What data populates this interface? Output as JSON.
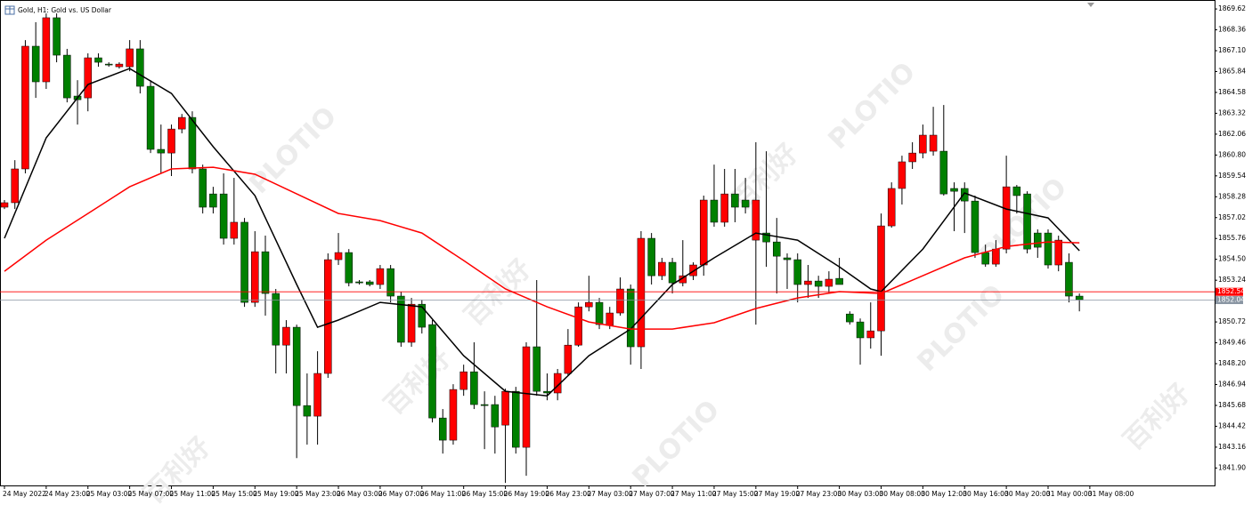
{
  "chart_data": {
    "type": "candlestick",
    "title": "Gold, H1:  Gold vs. US Dollar",
    "watermark": [
      "PLOTIO",
      "百利好"
    ],
    "up_color": "#ff0000",
    "down_color": "#008000",
    "ylim": [
      1840.9,
      1870.0
    ],
    "yticks": [
      1869.62,
      1868.36,
      {
        "value": 1867.1,
        "label": "1867.10"
      },
      1865.84,
      1864.58,
      1863.32,
      1862.06,
      {
        "value": 1860.8,
        "label": "1860.80"
      },
      1859.54,
      1858.28,
      1857.02,
      1855.76,
      {
        "value": 1854.5,
        "label": "1854.50"
      },
      1853.24,
      1850.72,
      1849.46,
      {
        "value": 1848.2,
        "label": "1848.20"
      },
      1846.94,
      1845.68,
      1844.42,
      1843.16,
      {
        "value": 1841.9,
        "label": "1841.90"
      }
    ],
    "xticks": [
      {
        "value": 0,
        "label": "24 May 2022"
      },
      {
        "value": 4,
        "label": "24 May 23:00"
      },
      {
        "value": 8,
        "label": "25 May 03:00"
      },
      {
        "value": 12,
        "label": "25 May 07:00"
      },
      {
        "value": 16,
        "label": "25 May 11:00"
      },
      {
        "value": 20,
        "label": "25 May 15:00"
      },
      {
        "value": 24,
        "label": "25 May 19:00"
      },
      {
        "value": 28,
        "label": "25 May 23:00"
      },
      {
        "value": 32,
        "label": "26 May 03:00"
      },
      {
        "value": 36,
        "label": "26 May 07:00"
      },
      {
        "value": 40,
        "label": "26 May 11:00"
      },
      {
        "value": 44,
        "label": "26 May 15:00"
      },
      {
        "value": 48,
        "label": "26 May 19:00"
      },
      {
        "value": 52,
        "label": "26 May 23:00"
      },
      {
        "value": 56,
        "label": "27 May 03:00"
      },
      {
        "value": 60,
        "label": "27 May 07:00"
      },
      {
        "value": 64,
        "label": "27 May 11:00"
      },
      {
        "value": 68,
        "label": "27 May 15:00"
      },
      {
        "value": 72,
        "label": "27 May 19:00"
      },
      {
        "value": 76,
        "label": "27 May 23:00"
      },
      {
        "value": 80,
        "label": "30 May 03:00"
      },
      {
        "value": 84,
        "label": "30 May 08:00"
      },
      {
        "value": 88,
        "label": "30 May 12:00"
      },
      {
        "value": 92,
        "label": "30 May 16:00"
      },
      {
        "value": 96,
        "label": "30 May 20:00"
      },
      {
        "value": 100,
        "label": "31 May 00:00"
      },
      {
        "value": 104,
        "label": "31 May 08:00"
      }
    ],
    "candles": {
      "open": [
        1857.65,
        1857.92,
        1859.96,
        1867.37,
        1865.22,
        1869.09,
        1866.83,
        1864.36,
        1864.25,
        1866.67,
        1866.29,
        1866.13,
        1866.13,
        1867.21,
        1864.95,
        1861.14,
        1860.92,
        1862.37,
        1863.07,
        1859.96,
        1858.45,
        1858.45,
        1855.77,
        1856.74,
        1851.9,
        1854.96,
        1852.44,
        1849.32,
        1850.4,
        1845.67,
        1845.03,
        1847.61,
        1854.48,
        1854.91,
        1853.14,
        1853.14,
        1852.98,
        1853.94,
        1852.28,
        1849.49,
        1851.79,
        1850.56,
        1844.92,
        1843.58,
        1846.64,
        1847.71,
        1845.73,
        1845.73,
        1844.49,
        1846.53,
        1843.15,
        1849.22,
        1846.53,
        1846.43,
        1847.61,
        1849.32,
        1851.63,
        1851.9,
        1850.51,
        1851.26,
        1852.71,
        1849.22,
        1855.77,
        1853.51,
        1854.32,
        1853.08,
        1853.51,
        1854.16,
        1858.08,
        1856.74,
        1858.45,
        1858.08,
        1855.66,
        1856.09,
        1855.55,
        1854.59,
        1854.48,
        1852.98,
        1853.19,
        1852.87,
        1853.35,
        1851.2,
        1850.72,
        1849.76,
        1850.18,
        1856.52,
        1858.78,
        1860.39,
        1860.92,
        1861.03,
        1861.03,
        1858.78,
        1858.78,
        1858.02,
        1854.91,
        1854.21,
        1855.12,
        1858.88,
        1858.45,
        1856.09,
        1856.09,
        1854.16,
        1854.32,
        1852.28
      ],
      "high": [
        1858.08,
        1860.49,
        1867.74,
        1868.82,
        1869.35,
        1869.35,
        1867.21,
        1865.32,
        1866.94,
        1866.94,
        1866.4,
        1866.4,
        1867.74,
        1867.74,
        1865.32,
        1862.64,
        1862.64,
        1863.28,
        1863.44,
        1860.22,
        1858.88,
        1859.69,
        1859.42,
        1857.0,
        1856.2,
        1855.93,
        1852.71,
        1850.83,
        1850.56,
        1847.61,
        1848.95,
        1854.86,
        1856.09,
        1855.12,
        1853.25,
        1853.25,
        1854.16,
        1854.16,
        1852.55,
        1852.17,
        1852.06,
        1850.83,
        1845.46,
        1846.96,
        1848.14,
        1849.49,
        1846.53,
        1846.26,
        1846.69,
        1846.8,
        1849.49,
        1853.25,
        1847.61,
        1847.88,
        1850.29,
        1851.9,
        1853.51,
        1852.17,
        1851.63,
        1853.41,
        1852.98,
        1856.2,
        1856.09,
        1854.59,
        1854.59,
        1855.66,
        1854.32,
        1858.35,
        1860.22,
        1859.96,
        1859.96,
        1859.42,
        1861.57,
        1861.03,
        1857.0,
        1854.86,
        1854.86,
        1854.16,
        1853.51,
        1853.78,
        1854.59,
        1851.36,
        1850.93,
        1851.9,
        1857.27,
        1859.15,
        1860.76,
        1861.57,
        1862.64,
        1863.71,
        1863.82,
        1859.15,
        1859.15,
        1858.35,
        1855.39,
        1855.66,
        1860.76,
        1858.99,
        1858.61,
        1856.31,
        1856.31,
        1855.93,
        1854.86,
        1852.44
      ],
      "low": [
        1857.54,
        1857.54,
        1859.69,
        1864.25,
        1864.79,
        1866.4,
        1863.98,
        1862.64,
        1863.44,
        1866.13,
        1866.13,
        1866.02,
        1865.86,
        1864.52,
        1860.92,
        1859.69,
        1859.53,
        1862.11,
        1859.69,
        1857.27,
        1857.27,
        1855.39,
        1855.39,
        1851.63,
        1851.63,
        1851.1,
        1847.61,
        1847.61,
        1842.5,
        1843.31,
        1843.31,
        1847.34,
        1854.16,
        1852.87,
        1852.98,
        1852.87,
        1852.71,
        1851.9,
        1849.22,
        1849.22,
        1850.02,
        1844.65,
        1842.77,
        1843.31,
        1846.26,
        1845.46,
        1843.04,
        1842.77,
        1841.0,
        1842.77,
        1841.43,
        1846.26,
        1845.99,
        1845.99,
        1847.5,
        1849.22,
        1851.36,
        1850.29,
        1850.29,
        1851.1,
        1848.14,
        1847.88,
        1852.98,
        1853.25,
        1852.44,
        1852.87,
        1853.25,
        1853.51,
        1856.47,
        1856.47,
        1856.74,
        1857.27,
        1850.56,
        1854.05,
        1852.44,
        1852.71,
        1851.9,
        1852.17,
        1852.17,
        1852.44,
        1852.98,
        1850.56,
        1848.14,
        1849.11,
        1848.68,
        1856.41,
        1857.81,
        1859.96,
        1860.6,
        1860.76,
        1858.35,
        1856.2,
        1856.09,
        1854.59,
        1854.05,
        1854.05,
        1854.86,
        1857.27,
        1854.86,
        1854.59,
        1853.94,
        1853.78,
        1851.9,
        1851.36
      ],
      "close": [
        1857.92,
        1859.96,
        1867.37,
        1865.22,
        1869.09,
        1866.83,
        1864.25,
        1864.14,
        1866.67,
        1866.4,
        1866.24,
        1866.29,
        1867.21,
        1864.95,
        1861.14,
        1860.92,
        1862.37,
        1863.07,
        1859.96,
        1857.65,
        1857.65,
        1855.77,
        1856.74,
        1851.9,
        1854.96,
        1852.44,
        1849.32,
        1850.4,
        1845.67,
        1845.03,
        1847.61,
        1854.48,
        1854.91,
        1853.08,
        1853.08,
        1852.98,
        1853.94,
        1852.28,
        1849.49,
        1851.79,
        1850.4,
        1844.92,
        1843.58,
        1846.64,
        1847.71,
        1845.73,
        1845.67,
        1844.38,
        1846.53,
        1843.15,
        1849.22,
        1846.53,
        1846.43,
        1847.61,
        1849.32,
        1851.63,
        1851.9,
        1850.56,
        1851.26,
        1852.71,
        1849.22,
        1855.77,
        1853.51,
        1854.32,
        1853.08,
        1853.51,
        1854.16,
        1858.08,
        1856.74,
        1858.45,
        1857.65,
        1857.65,
        1858.08,
        1855.55,
        1854.69,
        1854.48,
        1852.98,
        1853.19,
        1852.87,
        1853.3,
        1852.98,
        1850.72,
        1849.76,
        1850.18,
        1856.52,
        1858.78,
        1860.39,
        1860.92,
        1862.0,
        1862.0,
        1858.45,
        1858.61,
        1858.02,
        1854.91,
        1854.21,
        1855.12,
        1858.88,
        1858.35,
        1855.12,
        1855.23,
        1854.16,
        1855.66,
        1852.28,
        1852.06
      ]
    },
    "lines": [
      {
        "color": "#000000",
        "x": [
          0,
          4,
          8,
          12,
          16,
          20,
          24,
          28,
          30,
          32,
          36,
          40,
          44,
          48,
          52,
          56,
          60,
          64,
          68,
          72,
          76,
          80,
          83,
          84,
          88,
          92,
          96,
          100,
          103
        ],
        "values": [
          1855.77,
          1861.84,
          1865.06,
          1866.02,
          1864.52,
          1861.3,
          1858.35,
          1852.98,
          1850.4,
          1850.83,
          1851.9,
          1851.63,
          1848.68,
          1846.53,
          1846.26,
          1848.68,
          1850.29,
          1852.98,
          1854.59,
          1856.09,
          1855.66,
          1854.05,
          1852.71,
          1852.55,
          1855.12,
          1858.51,
          1857.54,
          1857.0,
          1855.02
        ]
      },
      {
        "color": "#ff0000",
        "x": [
          0,
          4,
          8,
          12,
          16,
          20,
          24,
          28,
          32,
          36,
          40,
          44,
          48,
          52,
          56,
          60,
          64,
          68,
          72,
          76,
          80,
          84,
          88,
          92,
          96,
          100,
          103
        ],
        "values": [
          1853.78,
          1855.66,
          1857.27,
          1858.88,
          1859.96,
          1860.06,
          1859.64,
          1858.45,
          1857.27,
          1856.84,
          1856.09,
          1854.43,
          1852.71,
          1851.63,
          1850.72,
          1850.29,
          1850.29,
          1850.67,
          1851.53,
          1852.17,
          1852.55,
          1852.44,
          1853.51,
          1854.59,
          1855.28,
          1855.55,
          1855.5
        ]
      }
    ],
    "price_lines": [
      {
        "value": 1852.54,
        "color": "#ff0000"
      },
      {
        "value": 1852.04,
        "color": "#8a96a3"
      }
    ]
  }
}
